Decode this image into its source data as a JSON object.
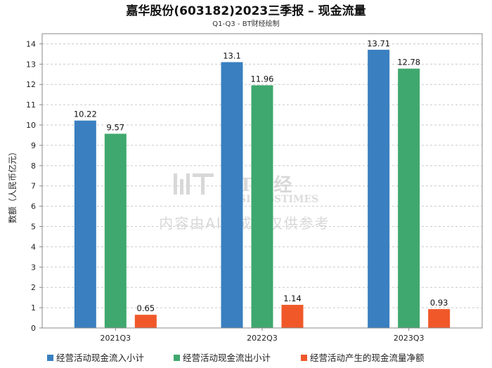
{
  "chart_data": {
    "type": "bar",
    "title": "嘉华股份(603182)2023三季报 – 现金流量",
    "subtitle": "Q1-Q3 - BT财经绘制",
    "xlabel": "",
    "ylabel": "数额（人民币亿元）",
    "ylim": [
      0,
      14.5
    ],
    "yticks": [
      0,
      1,
      2,
      3,
      4,
      5,
      6,
      7,
      8,
      9,
      10,
      11,
      12,
      13,
      14
    ],
    "grid": true,
    "legend_position": "bottom",
    "categories": [
      "2021Q3",
      "2022Q3",
      "2023Q3"
    ],
    "series": [
      {
        "name": "经营活动现金流入小计",
        "color": "#3a7fc0",
        "values": [
          10.22,
          13.1,
          13.71
        ],
        "labels": [
          "10.22",
          "13.1",
          "13.71"
        ]
      },
      {
        "name": "经营活动现金流出小计",
        "color": "#3fa86e",
        "values": [
          9.57,
          11.96,
          12.78
        ],
        "labels": [
          "9.57",
          "11.96",
          "12.78"
        ]
      },
      {
        "name": "经营活动产生的现金流量净额",
        "color": "#f0582a",
        "values": [
          0.65,
          1.14,
          0.93
        ],
        "labels": [
          "0.65",
          "1.14",
          "0.93"
        ]
      }
    ]
  },
  "watermark": {
    "logo": "BT财经",
    "sub": "BUSINESSTIMES",
    "note": "内容由AI生成，仅供参考"
  }
}
